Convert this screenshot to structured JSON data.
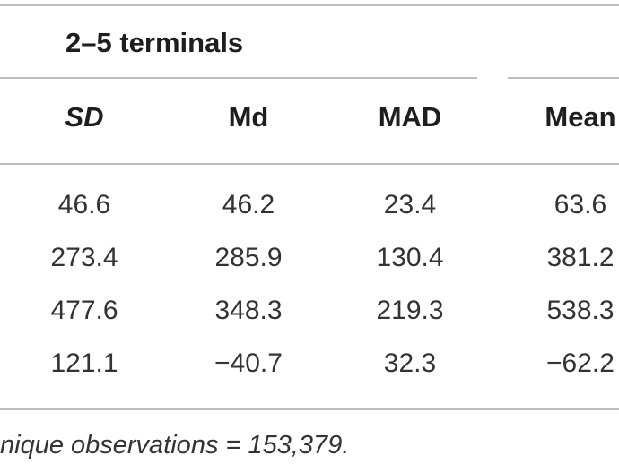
{
  "table": {
    "group_title": "2–5 terminals",
    "columns": [
      "SD",
      "Md",
      "MAD",
      "Mean"
    ],
    "rows": [
      [
        "46.6",
        "46.2",
        "23.4",
        "63.6"
      ],
      [
        "273.4",
        "285.9",
        "130.4",
        "381.2"
      ],
      [
        "477.6",
        "348.3",
        "219.3",
        "538.3"
      ],
      [
        "121.1",
        "−40.7",
        "32.3",
        "−62.2"
      ]
    ],
    "footnote": "nique observations = 153,379."
  }
}
